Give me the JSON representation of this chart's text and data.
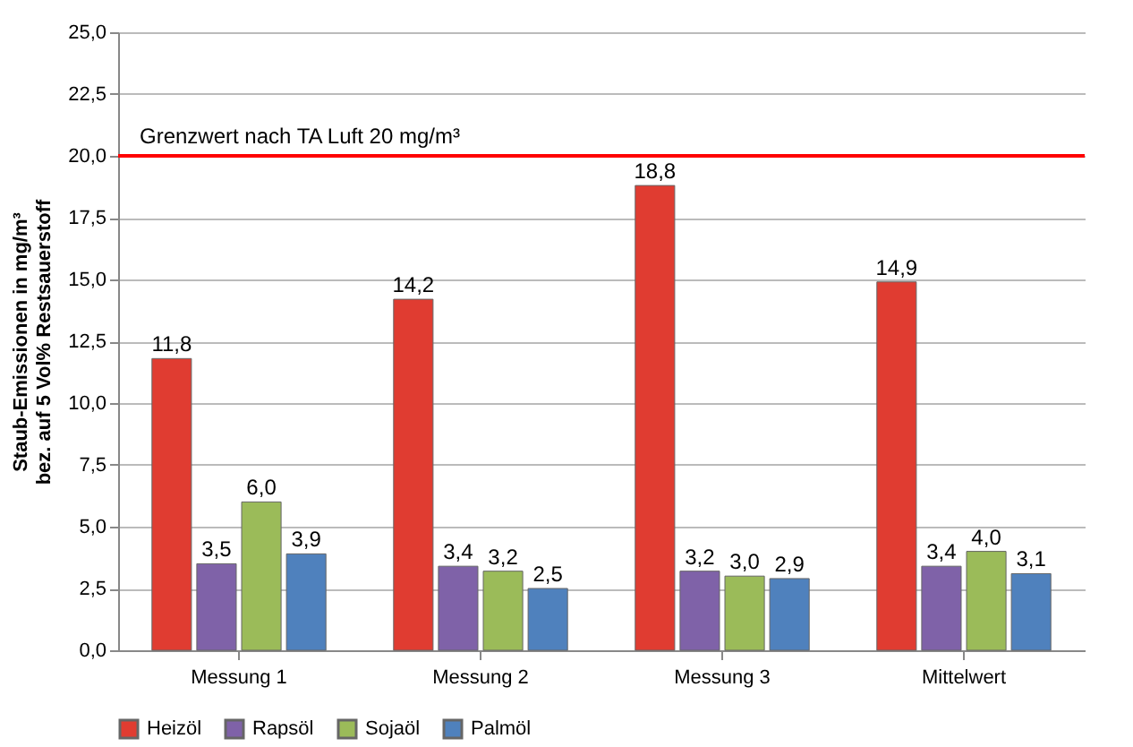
{
  "chart_data": {
    "type": "bar",
    "ylabel": "Staub-Emissionen in mg/m³\nbez. auf 5 Vol% Restsauerstoff",
    "categories": [
      "Messung 1",
      "Messung 2",
      "Messung 3",
      "Mittelwert"
    ],
    "series": [
      {
        "name": "Heizöl",
        "color": "#e03c31",
        "values": [
          11.8,
          14.2,
          18.8,
          14.9
        ],
        "value_labels": [
          "11,8",
          "14,2",
          "18,8",
          "14,9"
        ]
      },
      {
        "name": "Rapsöl",
        "color": "#7f62a8",
        "values": [
          3.5,
          3.4,
          3.2,
          3.4
        ],
        "value_labels": [
          "3,5",
          "3,4",
          "3,2",
          "3,4"
        ]
      },
      {
        "name": "Sojaöl",
        "color": "#9bbb59",
        "values": [
          6.0,
          3.2,
          3.0,
          4.0
        ],
        "value_labels": [
          "6,0",
          "3,2",
          "3,0",
          "4,0"
        ]
      },
      {
        "name": "Palmöl",
        "color": "#4f81bd",
        "values": [
          3.9,
          2.5,
          2.9,
          3.1
        ],
        "value_labels": [
          "3,9",
          "2,5",
          "2,9",
          "3,1"
        ]
      }
    ],
    "ylim": [
      0,
      25
    ],
    "yticks": [
      {
        "value": 0,
        "label": "0,0"
      },
      {
        "value": 2.5,
        "label": "2,5"
      },
      {
        "value": 5,
        "label": "5,0"
      },
      {
        "value": 7.5,
        "label": "7,5"
      },
      {
        "value": 10,
        "label": "10,0"
      },
      {
        "value": 12.5,
        "label": "12,5"
      },
      {
        "value": 15,
        "label": "15,0"
      },
      {
        "value": 17.5,
        "label": "17,5"
      },
      {
        "value": 20,
        "label": "20,0"
      },
      {
        "value": 22.5,
        "label": "22,5"
      },
      {
        "value": 25,
        "label": "25,0"
      }
    ],
    "ref_lines": [
      {
        "axis": "y",
        "value": 20,
        "label": "Grenzwert nach TA Luft 20 mg/m³",
        "color": "#ff0000"
      }
    ],
    "grid": "y",
    "legend": "bottom"
  }
}
